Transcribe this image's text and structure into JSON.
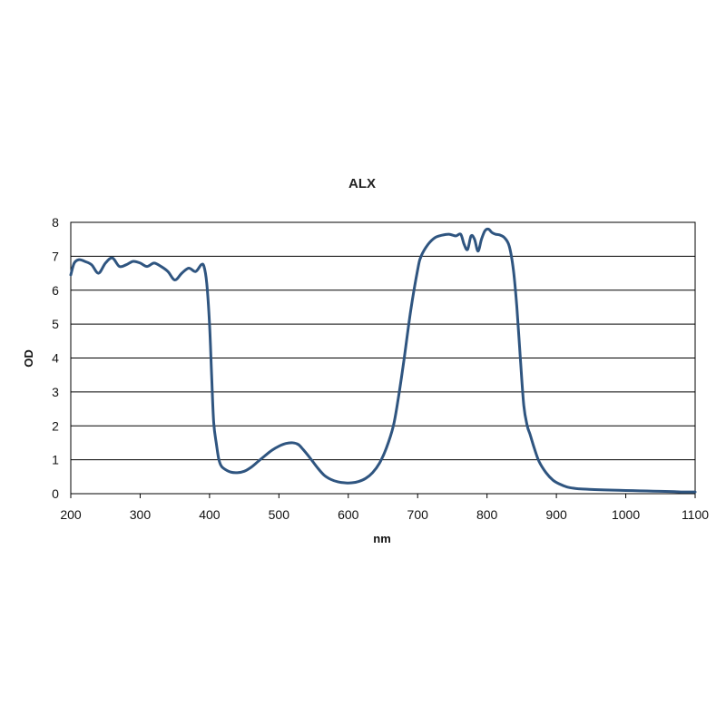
{
  "chart_data": {
    "type": "line",
    "title": "ALX",
    "xlabel": "nm",
    "ylabel": "OD",
    "xlim": [
      200,
      1100
    ],
    "ylim": [
      0,
      8
    ],
    "x_ticks": [
      200,
      300,
      400,
      500,
      600,
      700,
      800,
      900,
      1000,
      1100
    ],
    "y_ticks": [
      0,
      1,
      2,
      3,
      4,
      5,
      6,
      7,
      8
    ],
    "grid": "horizontal",
    "legend": "none",
    "colors": {
      "line": "#2f5580",
      "grid": "#000000",
      "axis": "#000000"
    },
    "series": [
      {
        "x": [
          200,
          205,
          212,
          220,
          230,
          240,
          250,
          260,
          270,
          280,
          290,
          300,
          310,
          320,
          330,
          340,
          350,
          360,
          370,
          380,
          388,
          392,
          396,
          400,
          403,
          406,
          410,
          413,
          416,
          420,
          430,
          440,
          450,
          460,
          470,
          480,
          490,
          500,
          510,
          520,
          528,
          535,
          545,
          555,
          565,
          575,
          585,
          595,
          605,
          615,
          625,
          635,
          645,
          655,
          665,
          672,
          680,
          690,
          700,
          705,
          715,
          725,
          735,
          745,
          755,
          762,
          767,
          772,
          777,
          782,
          787,
          792,
          797,
          802,
          807,
          812,
          818,
          825,
          832,
          838,
          843,
          848,
          853,
          858,
          862,
          868,
          875,
          885,
          895,
          905,
          915,
          925,
          935,
          945,
          955,
          970,
          990,
          1010,
          1030,
          1050,
          1070,
          1085,
          1100
        ],
        "y": [
          6.45,
          6.8,
          6.9,
          6.85,
          6.75,
          6.5,
          6.8,
          6.95,
          6.7,
          6.75,
          6.85,
          6.8,
          6.7,
          6.8,
          6.7,
          6.55,
          6.3,
          6.5,
          6.65,
          6.55,
          6.75,
          6.7,
          6.2,
          5.0,
          3.5,
          2.1,
          1.45,
          1.05,
          0.85,
          0.75,
          0.64,
          0.62,
          0.66,
          0.78,
          0.95,
          1.12,
          1.28,
          1.4,
          1.48,
          1.5,
          1.45,
          1.3,
          1.05,
          0.78,
          0.55,
          0.42,
          0.35,
          0.32,
          0.32,
          0.36,
          0.45,
          0.62,
          0.9,
          1.35,
          2.0,
          2.8,
          3.9,
          5.4,
          6.6,
          7.0,
          7.35,
          7.55,
          7.62,
          7.65,
          7.6,
          7.65,
          7.35,
          7.2,
          7.6,
          7.5,
          7.15,
          7.5,
          7.75,
          7.8,
          7.7,
          7.65,
          7.63,
          7.55,
          7.3,
          6.6,
          5.5,
          4.0,
          2.6,
          2.0,
          1.75,
          1.35,
          0.95,
          0.62,
          0.4,
          0.28,
          0.2,
          0.16,
          0.14,
          0.13,
          0.12,
          0.11,
          0.1,
          0.09,
          0.08,
          0.07,
          0.06,
          0.05,
          0.05
        ]
      }
    ]
  }
}
